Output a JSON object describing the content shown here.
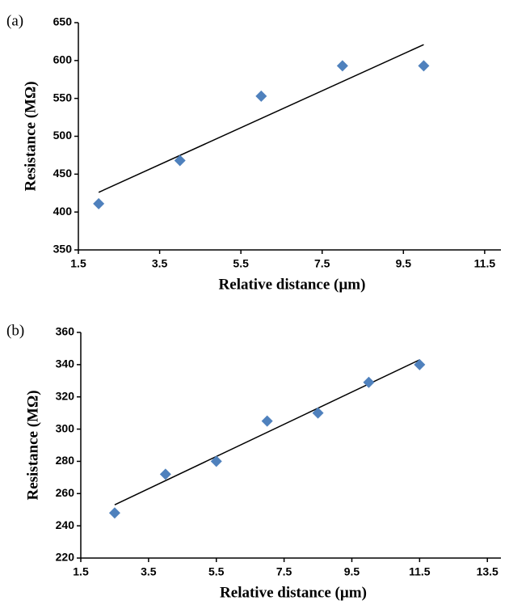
{
  "chart_data": [
    {
      "type": "scatter",
      "panel_label": "(a)",
      "x_label": "Relative distance (µm)",
      "y_label": "Resistance (MΩ)",
      "x": [
        2,
        4,
        6,
        8,
        10
      ],
      "values": [
        411,
        468,
        553,
        593,
        593
      ],
      "color": "#4f81bd",
      "trendline": {
        "x": [
          2,
          10
        ],
        "y": [
          426,
          621
        ],
        "color": "#000000"
      },
      "xlim": [
        1.5,
        11.9
      ],
      "xticks": [
        1.5,
        3.5,
        5.5,
        7.5,
        9.5,
        11.5
      ],
      "ylim": [
        350,
        650
      ],
      "yticks": [
        350,
        400,
        450,
        500,
        550,
        600,
        650
      ],
      "grid": false
    },
    {
      "type": "scatter",
      "panel_label": "(b)",
      "x_label": "Relative distance (µm)",
      "y_label": "Resistance (MΩ)",
      "x": [
        2.5,
        4,
        5.5,
        7,
        8.5,
        10,
        11.5
      ],
      "values": [
        248,
        272,
        280,
        305,
        310,
        329,
        340
      ],
      "color": "#4f81bd",
      "trendline": {
        "x": [
          2.5,
          11.5
        ],
        "y": [
          253,
          343
        ],
        "color": "#000000"
      },
      "xlim": [
        1.5,
        13.9
      ],
      "xticks": [
        1.5,
        3.5,
        5.5,
        7.5,
        9.5,
        11.5,
        13.5
      ],
      "ylim": [
        220,
        360
      ],
      "yticks": [
        220,
        240,
        260,
        280,
        300,
        320,
        340,
        360
      ],
      "grid": false
    }
  ]
}
